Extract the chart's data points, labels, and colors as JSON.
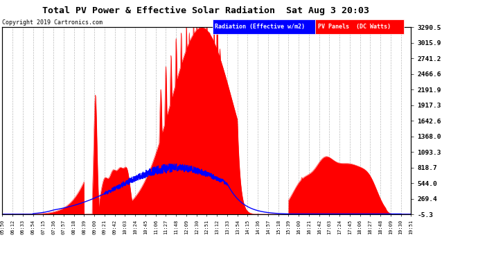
{
  "title": "Total PV Power & Effective Solar Radiation  Sat Aug 3 20:03",
  "copyright": "Copyright 2019 Cartronics.com",
  "legend_blue": "Radiation (Effective w/m2)",
  "legend_red": "PV Panels  (DC Watts)",
  "bg_color": "#ffffff",
  "plot_bg_color": "#ffffff",
  "grid_color": "#aaaaaa",
  "yticks": [
    3290.5,
    3015.9,
    2741.2,
    2466.6,
    2191.9,
    1917.3,
    1642.6,
    1368.0,
    1093.3,
    818.7,
    544.0,
    269.4,
    -5.3
  ],
  "ylim": [
    -5.3,
    3290.5
  ],
  "x_labels": [
    "05:50",
    "06:12",
    "06:33",
    "06:54",
    "07:15",
    "07:36",
    "07:57",
    "08:18",
    "08:39",
    "09:00",
    "09:21",
    "09:42",
    "10:03",
    "10:24",
    "10:45",
    "11:06",
    "11:27",
    "11:48",
    "12:09",
    "12:30",
    "12:51",
    "13:12",
    "13:33",
    "13:54",
    "14:15",
    "14:36",
    "14:57",
    "15:18",
    "15:39",
    "16:00",
    "16:21",
    "16:42",
    "17:03",
    "17:24",
    "17:45",
    "18:06",
    "18:27",
    "18:48",
    "19:09",
    "19:30",
    "19:51"
  ]
}
